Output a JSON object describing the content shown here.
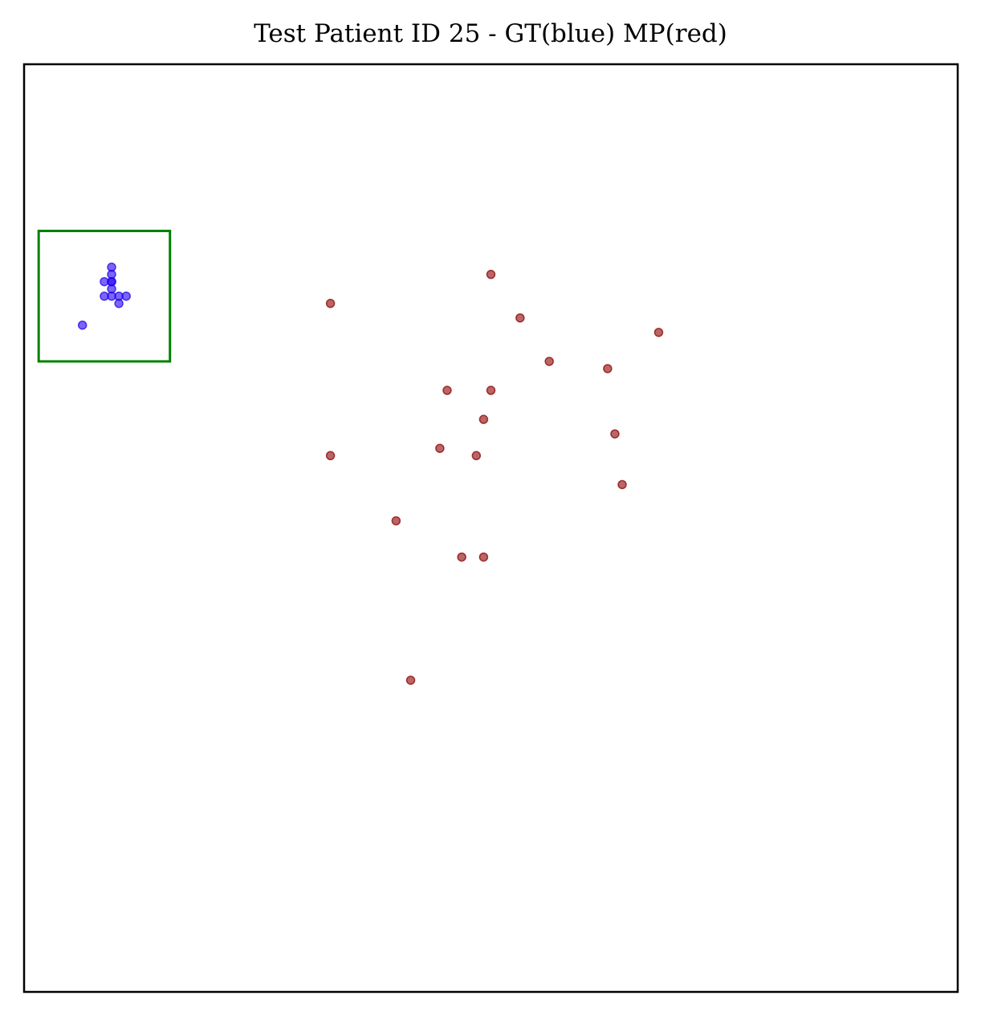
{
  "chart_data": {
    "type": "scatter",
    "title": "Test Patient ID 25 - GT(blue) MP(red)",
    "xlabel": "",
    "ylabel": "",
    "xlim": [
      0,
      128
    ],
    "ylim": [
      0,
      128
    ],
    "y_direction": "down",
    "ticks": false,
    "grid": false,
    "legend": "none",
    "series": [
      {
        "name": "GT",
        "color": "#2200ee",
        "points": [
          [
            12,
            28
          ],
          [
            12,
            29
          ],
          [
            12,
            30
          ],
          [
            11,
            30
          ],
          [
            12,
            30
          ],
          [
            12,
            31
          ],
          [
            11,
            32
          ],
          [
            12,
            32
          ],
          [
            13,
            32
          ],
          [
            14,
            32
          ],
          [
            13,
            33
          ],
          [
            8,
            36
          ]
        ]
      },
      {
        "name": "MP",
        "color": "#8b0000",
        "points": [
          [
            64,
            29
          ],
          [
            42,
            33
          ],
          [
            68,
            35
          ],
          [
            87,
            37
          ],
          [
            72,
            41
          ],
          [
            80,
            42
          ],
          [
            58,
            45
          ],
          [
            64,
            45
          ],
          [
            63,
            49
          ],
          [
            81,
            51
          ],
          [
            57,
            53
          ],
          [
            62,
            54
          ],
          [
            42,
            54
          ],
          [
            82,
            58
          ],
          [
            51,
            63
          ],
          [
            60,
            68
          ],
          [
            63,
            68
          ],
          [
            53,
            85
          ]
        ]
      }
    ],
    "annotations": [
      {
        "type": "rectangle",
        "color": "#008000",
        "x_range": [
          2,
          20
        ],
        "y_range": [
          23,
          41
        ]
      }
    ]
  }
}
